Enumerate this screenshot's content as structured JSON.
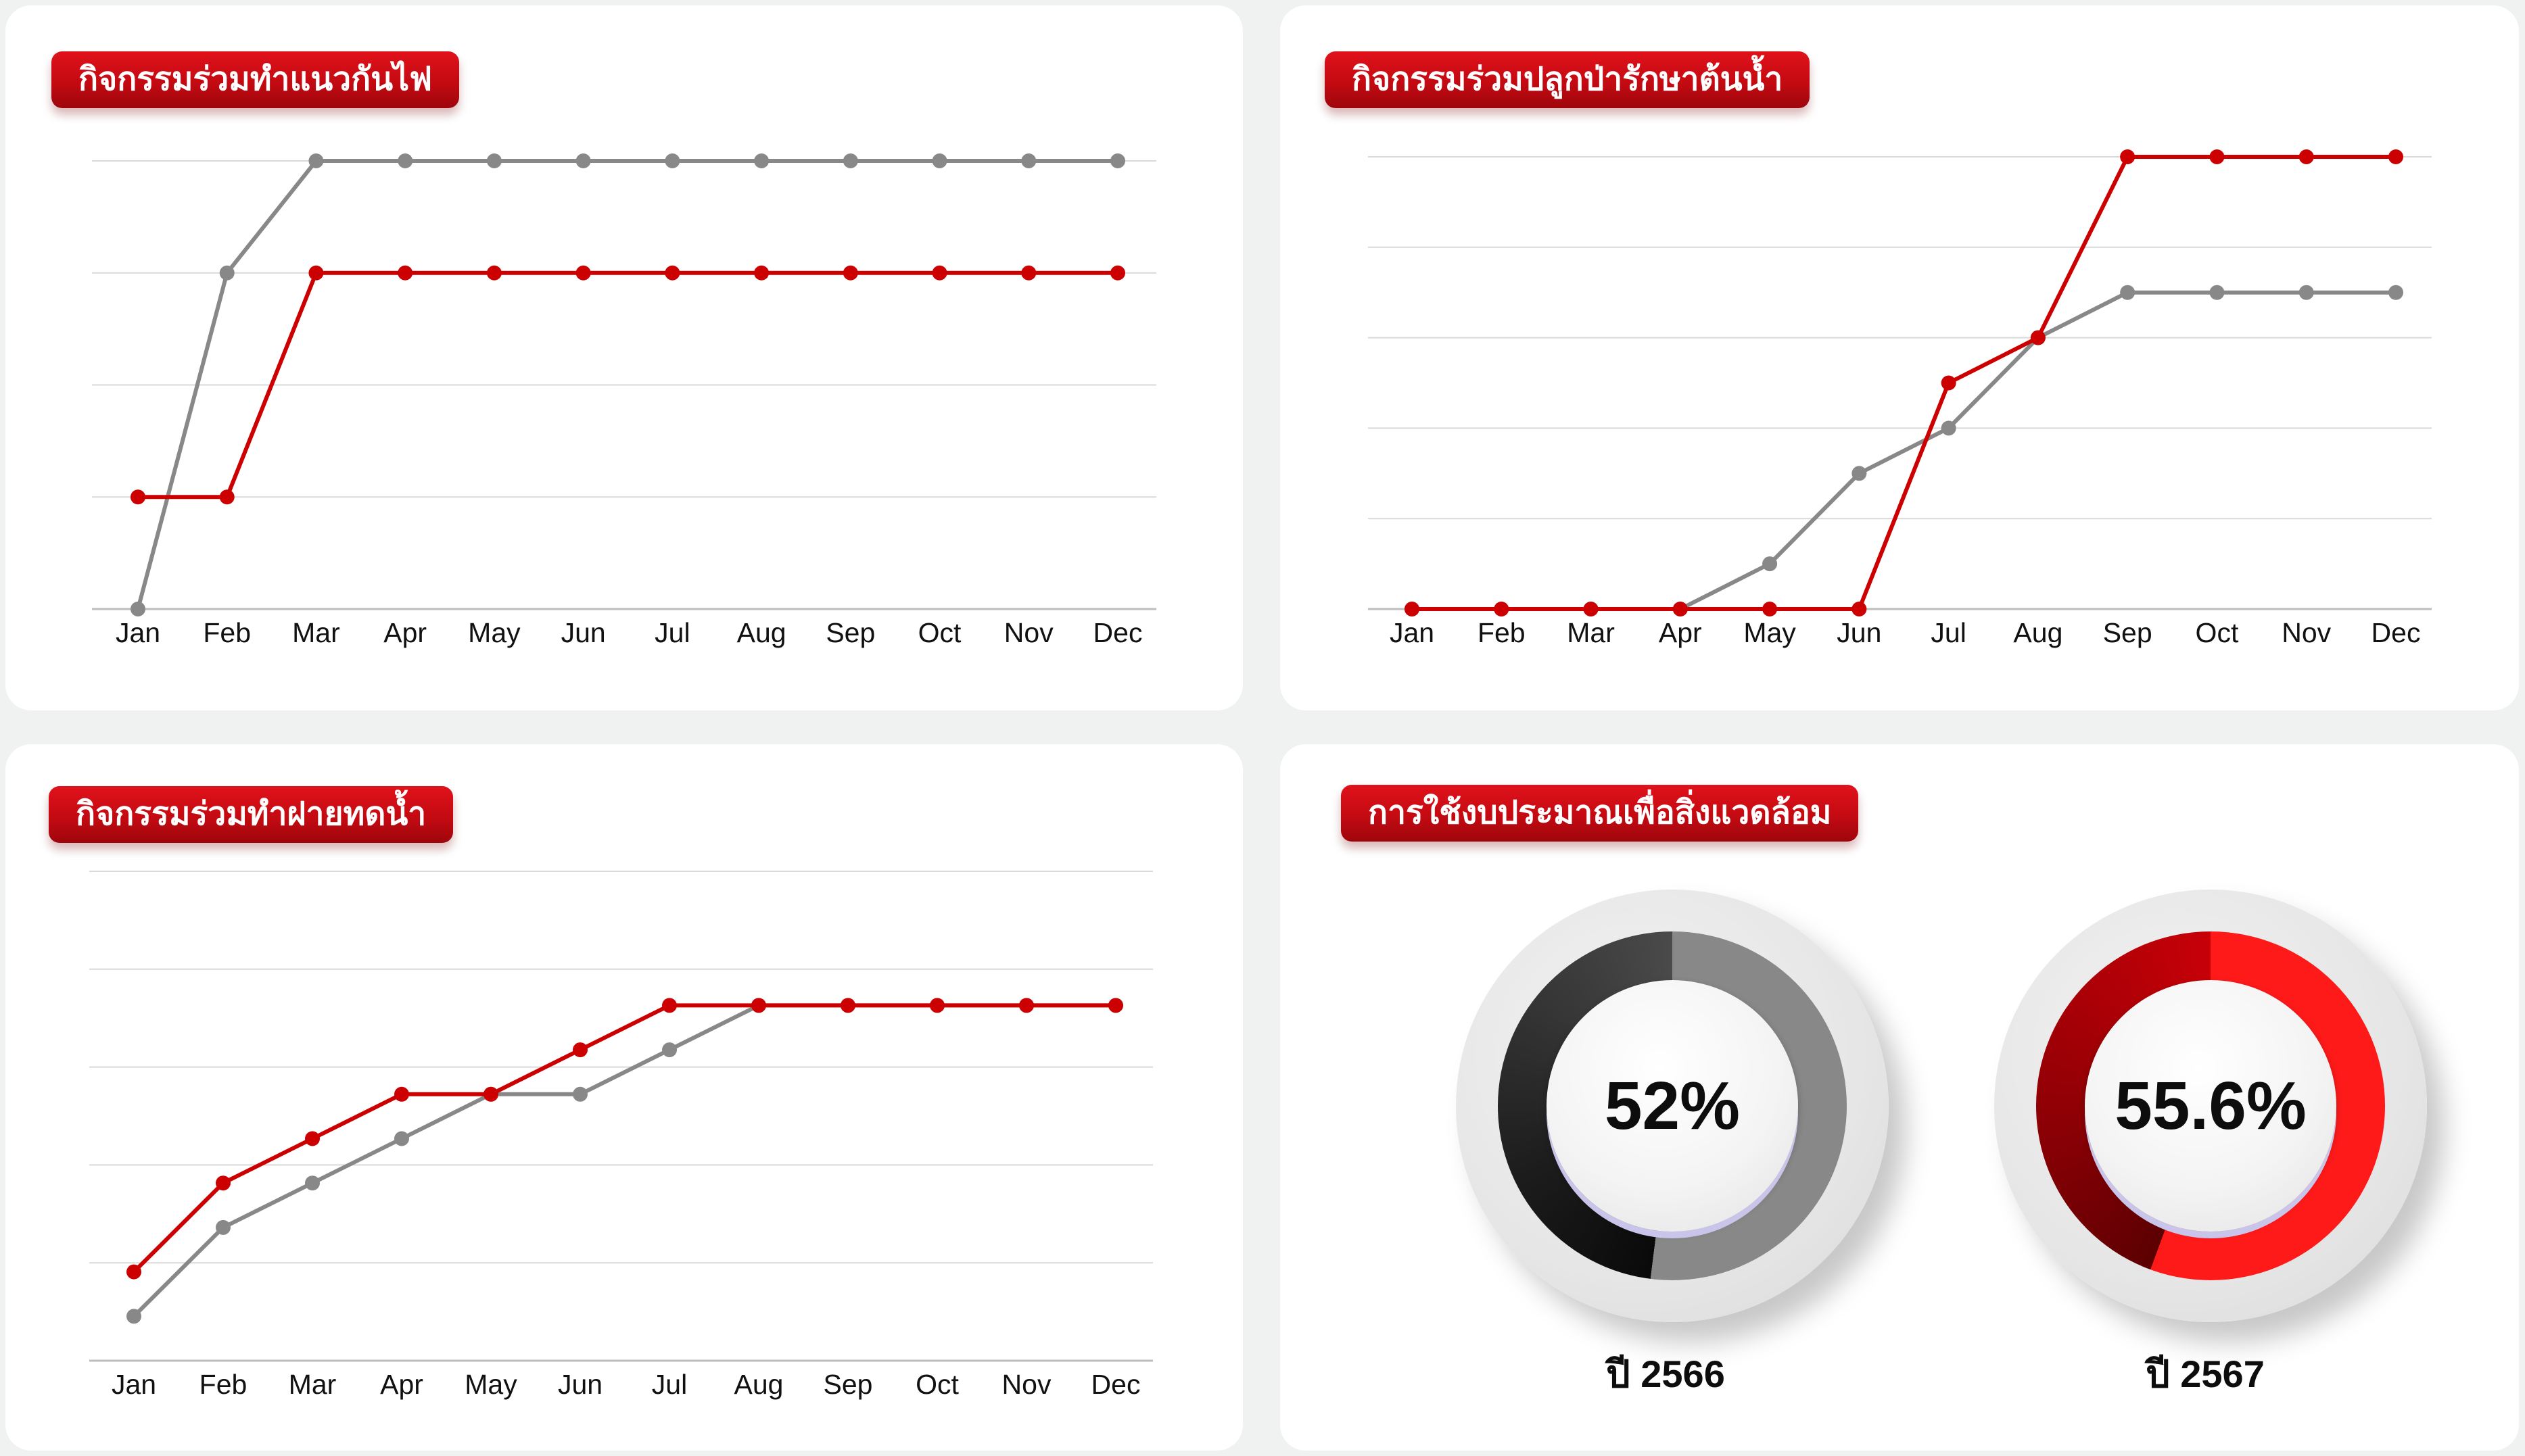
{
  "chart_data": [
    {
      "type": "line",
      "title": "กิจกรรมร่วมทำแนวกันไฟ",
      "categories": [
        "Jan",
        "Feb",
        "Mar",
        "Apr",
        "May",
        "Jun",
        "Jul",
        "Aug",
        "Sep",
        "Oct",
        "Nov",
        "Dec"
      ],
      "ylim": [
        0,
        4
      ],
      "grid": true,
      "series": [
        {
          "color": "#888888",
          "values": [
            0,
            3,
            4,
            4,
            4,
            4,
            4,
            4,
            4,
            4,
            4,
            4
          ]
        },
        {
          "color": "#cc0000",
          "values": [
            1,
            1,
            3,
            3,
            3,
            3,
            3,
            3,
            3,
            3,
            3,
            3
          ]
        }
      ]
    },
    {
      "type": "line",
      "title": "กิจกรรมร่วมปลูกป่ารักษาต้นน้ำ",
      "categories": [
        "Jan",
        "Feb",
        "Mar",
        "Apr",
        "May",
        "Jun",
        "Jul",
        "Aug",
        "Sep",
        "Oct",
        "Nov",
        "Dec"
      ],
      "ylim": [
        0,
        5
      ],
      "grid": true,
      "series": [
        {
          "color": "#888888",
          "values": [
            0,
            0,
            0,
            0,
            0.5,
            1.5,
            2,
            3,
            3.5,
            3.5,
            3.5,
            3.5
          ]
        },
        {
          "color": "#cc0000",
          "values": [
            0,
            0,
            0,
            0,
            0,
            0,
            2.5,
            3,
            5,
            5,
            5,
            5
          ]
        }
      ]
    },
    {
      "type": "line",
      "title": "กิจกรรมร่วมทำฝายทดน้ำ",
      "categories": [
        "Jan",
        "Feb",
        "Mar",
        "Apr",
        "May",
        "Jun",
        "Jul",
        "Aug",
        "Sep",
        "Oct",
        "Nov",
        "Dec"
      ],
      "ylim": [
        0,
        5
      ],
      "grid": true,
      "series": [
        {
          "color": "#888888",
          "values": [
            0.5,
            1.5,
            2,
            2.5,
            3,
            3,
            3.5,
            4,
            4,
            4,
            4,
            4
          ]
        },
        {
          "color": "#cc0000",
          "values": [
            1,
            2,
            2.5,
            3,
            3,
            3.5,
            4,
            4,
            4,
            4,
            4,
            4
          ]
        }
      ]
    }
  ],
  "budget": {
    "title": "การใช้งบประมาณเพื่อสิ่งแวดล้อม",
    "items": [
      {
        "percent": 52,
        "label": "52%",
        "year": "ปี 2566",
        "color": "#888888"
      },
      {
        "percent": 55.6,
        "label": "55.6%",
        "year": "ปี 2567",
        "color": "#ff1a1a"
      }
    ]
  }
}
